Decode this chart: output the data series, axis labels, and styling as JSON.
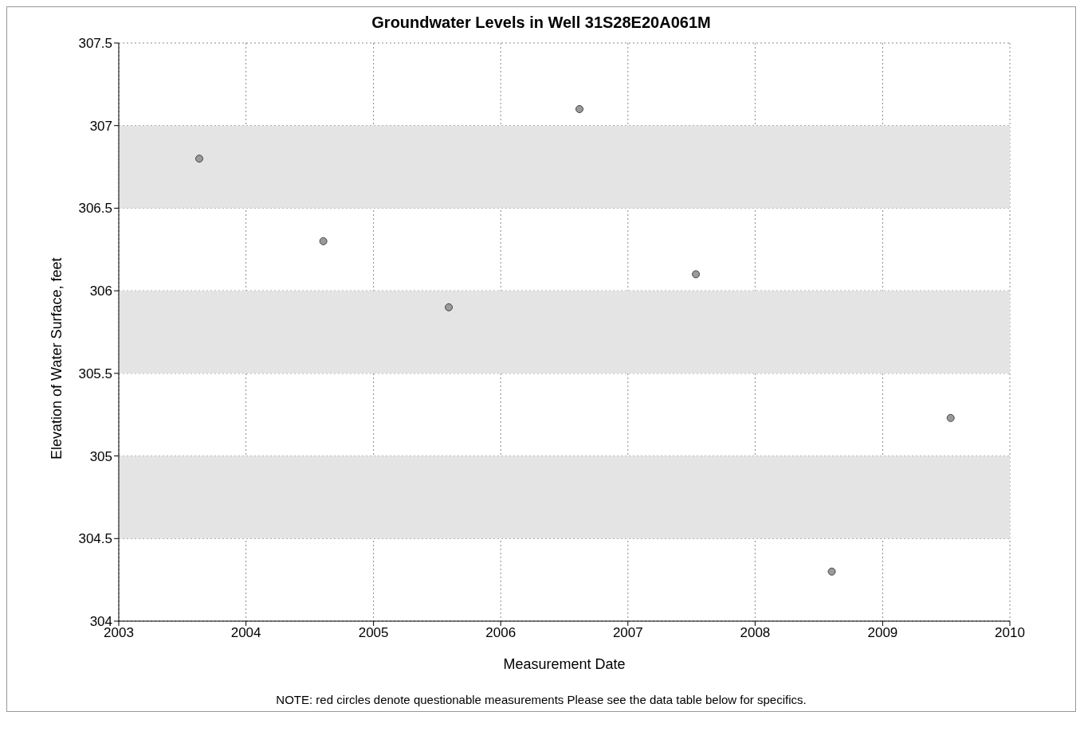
{
  "chart_data": {
    "type": "scatter",
    "title": "Groundwater Levels in Well 31S28E20A061M",
    "xlabel": "Measurement Date",
    "ylabel": "Elevation of Water Surface, feet",
    "x": [
      "2003-08-20",
      "2004-08-10",
      "2005-08-05",
      "2006-08-15",
      "2007-07-15",
      "2008-08-08",
      "2009-07-15"
    ],
    "series": [
      {
        "color": "#9a9a9a",
        "values": [
          306.8,
          306.3,
          305.9,
          307.1,
          306.1,
          304.3,
          305.23
        ]
      }
    ],
    "xlim": [
      "2003",
      "2010"
    ],
    "xticks": [
      "2003",
      "2004",
      "2005",
      "2006",
      "2007",
      "2008",
      "2009",
      "2010"
    ],
    "ylim": [
      304,
      307.5
    ],
    "yticks": [
      304,
      304.5,
      305,
      305.5,
      306,
      306.5,
      307,
      307.5
    ],
    "bands": [
      {
        "axis": "y",
        "from": 306.5,
        "to": 307,
        "color": "#e4e4e4"
      },
      {
        "axis": "y",
        "from": 305.5,
        "to": 306,
        "color": "#e4e4e4"
      },
      {
        "axis": "y",
        "from": 304.5,
        "to": 305,
        "color": "#e4e4e4"
      }
    ],
    "grid": true,
    "marker": "circle",
    "annotations": [
      "NOTE: red circles denote questionable measurements  Please see the data table below for specifics."
    ]
  }
}
